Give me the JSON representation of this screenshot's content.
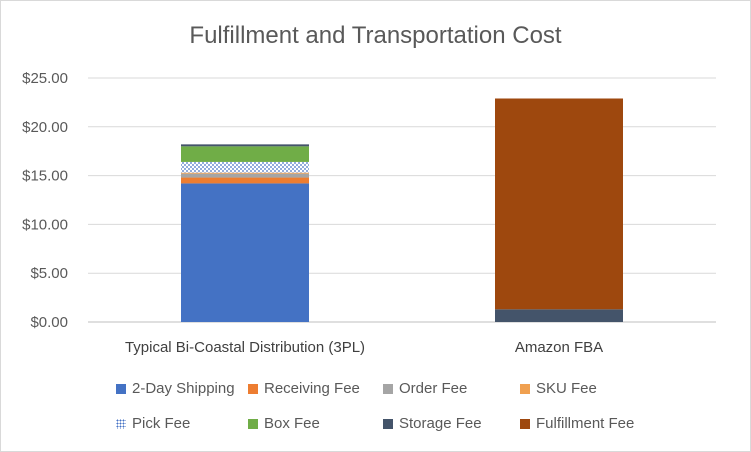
{
  "chart_data": {
    "type": "bar",
    "stacked": true,
    "title": "Fulfillment and Transportation Cost",
    "categories": [
      "Typical Bi-Coastal Distribution (3PL)",
      "Amazon FBA"
    ],
    "ylim": [
      0,
      25
    ],
    "y_ticks": [
      "$0.00",
      "$5.00",
      "$10.00",
      "$15.00",
      "$20.00",
      "$25.00"
    ],
    "grid": true,
    "legend_position": "bottom",
    "series": [
      {
        "name": "2-Day Shipping",
        "color": "#4472c4",
        "values": [
          14.2,
          0
        ]
      },
      {
        "name": "Receiving Fee",
        "color": "#ed7d31",
        "values": [
          0.6,
          0
        ]
      },
      {
        "name": "Order Fee",
        "color": "#a5a5a5",
        "values": [
          0.4,
          0
        ]
      },
      {
        "name": "SKU Fee",
        "color": "#f0a050",
        "values": [
          0.1,
          0
        ]
      },
      {
        "name": "Pick Fee",
        "color": "#8ea9db",
        "pattern": "dotted",
        "values": [
          1.1,
          0
        ]
      },
      {
        "name": "Box Fee",
        "color": "#70ad47",
        "values": [
          1.6,
          0
        ]
      },
      {
        "name": "Storage Fee",
        "color": "#44546a",
        "values": [
          0.2,
          1.3
        ]
      },
      {
        "name": "Fulfillment Fee",
        "color": "#9e480e",
        "values": [
          0,
          21.6
        ]
      }
    ]
  }
}
